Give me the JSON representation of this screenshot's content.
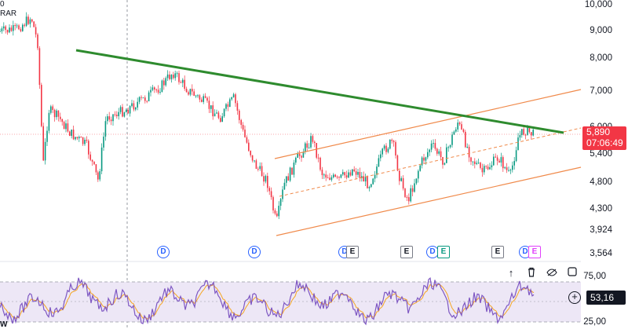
{
  "legend": {
    "line1": "0",
    "line2": "RAR"
  },
  "price_axis": {
    "ticks": [
      "10,000",
      "9,000",
      "8,000",
      "7,000",
      "6,000",
      "5,400",
      "4,800",
      "4,300",
      "3,924",
      "3,564"
    ],
    "current_price": "5,890",
    "countdown": "07:06:49"
  },
  "rsi_axis": {
    "ticks": [
      "75,00",
      "25,00"
    ],
    "current_value": "53,16"
  },
  "rsi_pane_label": "W",
  "events": [
    {
      "type": "D",
      "kind": "dividend"
    },
    {
      "type": "D",
      "kind": "dividend"
    },
    {
      "type": "D",
      "kind": "dividend"
    },
    {
      "type": "E",
      "kind": "earnings"
    },
    {
      "type": "E",
      "kind": "earnings"
    },
    {
      "type": "D",
      "kind": "dividend"
    },
    {
      "type": "E",
      "kind": "earnings"
    },
    {
      "type": "E",
      "kind": "earnings"
    },
    {
      "type": "D",
      "kind": "dividend"
    },
    {
      "type": "E",
      "kind": "earnings"
    }
  ],
  "toolbar": {
    "up_icon": "arrow-up-icon",
    "trash_icon": "trash-icon",
    "hide_icon": "eye-off-icon",
    "maximize_icon": "maximize-icon"
  },
  "colors": {
    "trendline": "#2e8b2e",
    "channel": "#f08a4b",
    "candle_up": "#089981",
    "candle_down": "#f23645",
    "price_tag": "#f23645",
    "rsi_line": "#7e57c2",
    "rsi_ma": "#f5a623",
    "rsi_band": "#ede7f6"
  }
}
